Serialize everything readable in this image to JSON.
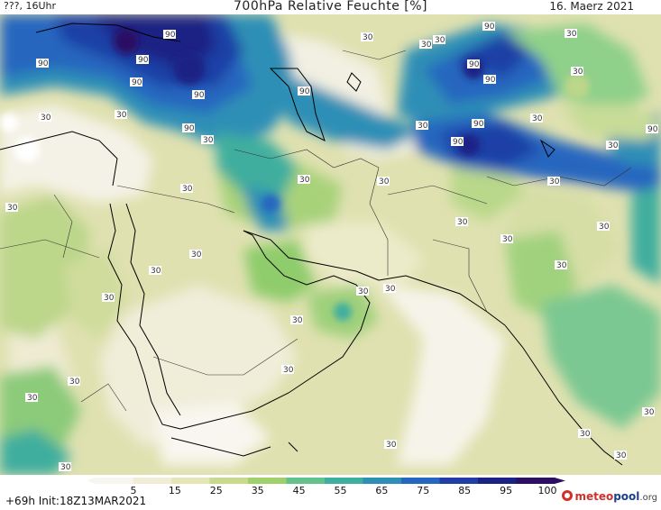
{
  "header": {
    "left": "???, 16Uhr",
    "title": "700hPa Relative Feuchte [%]",
    "date": "16. Maerz 2021"
  },
  "footer": {
    "run_info": "+69h  Init:18Z13MAR2021",
    "legend_ticks": [
      "5",
      "15",
      "25",
      "35",
      "45",
      "55",
      "65",
      "75",
      "85",
      "95",
      "100"
    ],
    "legend_colors": [
      "#f7f5ef",
      "#f0ecd6",
      "#e4e6b8",
      "#c9da8e",
      "#9fd06a",
      "#63c28c",
      "#3fae9e",
      "#2d8fb6",
      "#2566bf",
      "#1f3fa6",
      "#1a2384",
      "#2c0f63"
    ],
    "logo_meteo": "meteo",
    "logo_pool": "pool",
    "logo_org": ".org"
  },
  "map": {
    "contour_labels": [
      "90",
      "90",
      "90",
      "90",
      "90",
      "90",
      "90",
      "90",
      "90",
      "90",
      "90",
      "90",
      "90",
      "30",
      "30",
      "30",
      "30",
      "30",
      "30",
      "30",
      "30",
      "30",
      "30",
      "30",
      "30",
      "30",
      "30",
      "30",
      "30",
      "30",
      "30",
      "30",
      "30",
      "30",
      "30",
      "30",
      "30",
      "30",
      "30",
      "30",
      "30",
      "30",
      "30",
      "30",
      "30",
      "30",
      "30"
    ]
  }
}
